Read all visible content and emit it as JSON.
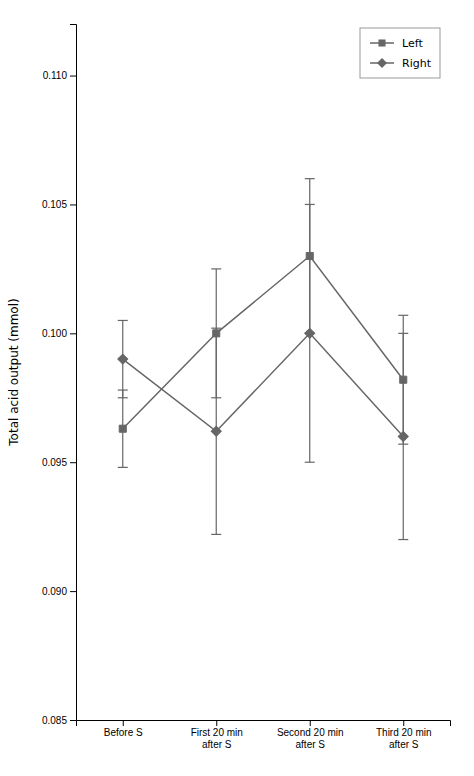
{
  "chart_data": {
    "type": "line",
    "y_label": "Total acid output (mmol)",
    "categories": [
      "Before S",
      "First 20 min\nafter S",
      "Second 20 min\nafter S",
      "Third 20 min\nafter S"
    ],
    "series": [
      {
        "name": "Left",
        "color": "#666666",
        "marker": "square",
        "line_style": "solid",
        "values": [
          0.0963,
          0.1,
          0.103,
          0.0982
        ],
        "errors": [
          0.0015,
          0.0025,
          0.003,
          0.0025
        ]
      },
      {
        "name": "Right",
        "color": "#666666",
        "marker": "diamond",
        "line_style": "solid",
        "values": [
          0.099,
          0.0962,
          0.1,
          0.096
        ],
        "errors": [
          0.0015,
          0.004,
          0.005,
          0.004
        ]
      }
    ],
    "ylim": [
      0.085,
      0.112
    ],
    "yticks": [
      0.085,
      {
        "value": 0.09,
        "label": "0.090"
      },
      0.095,
      {
        "value": 0.1,
        "label": "0.100"
      },
      0.105,
      {
        "value": 0.11,
        "label": "0.110"
      }
    ],
    "grid": false,
    "legend": "upper right"
  }
}
